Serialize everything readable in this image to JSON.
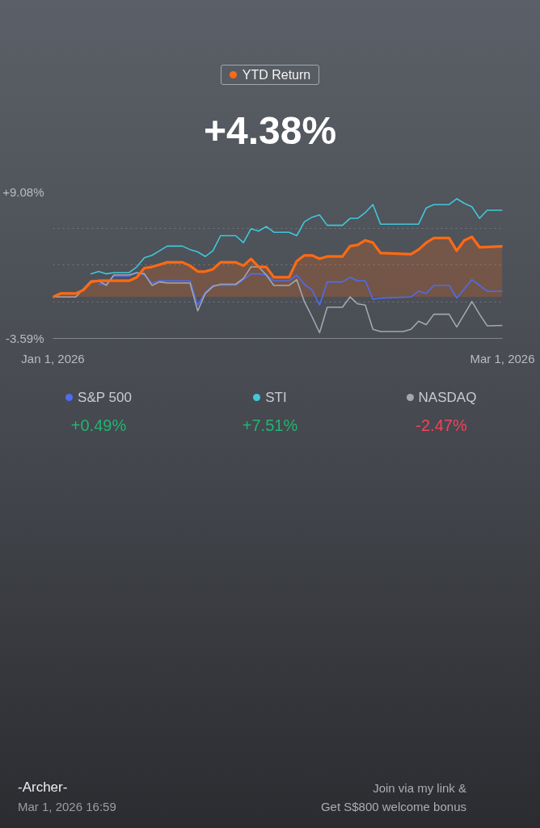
{
  "chart_data": {
    "type": "line",
    "title": "YTD Return",
    "xlim": [
      "2026-01-01",
      "2026-03-01"
    ],
    "xticks": [
      {
        "value": "2026-01-01",
        "label": "Jan 1, 2026"
      },
      {
        "value": "2026-03-01",
        "label": "Mar 1, 2026"
      }
    ],
    "ylim": [
      -3.59,
      9.08
    ],
    "yticks": [
      {
        "value": 9.08,
        "label": "+9.08%"
      },
      {
        "value": 5.91,
        "label": null
      },
      {
        "value": 2.75,
        "label": null
      },
      {
        "value": -0.42,
        "label": null
      },
      {
        "value": -3.59,
        "label": "-3.59%"
      }
    ],
    "grid": true,
    "legend": "bottom",
    "series": [
      {
        "type": "area",
        "color": "#ff6a13",
        "x": [
          "2026-01-01",
          "2026-01-02",
          "2026-01-04",
          "2026-01-05",
          "2026-01-06",
          "2026-01-07",
          "2026-01-08",
          "2026-01-11",
          "2026-01-12",
          "2026-01-13",
          "2026-01-14",
          "2026-01-15",
          "2026-01-16",
          "2026-01-18",
          "2026-01-19",
          "2026-01-20",
          "2026-01-21",
          "2026-01-22",
          "2026-01-23",
          "2026-01-25",
          "2026-01-26",
          "2026-01-27",
          "2026-01-28",
          "2026-01-29",
          "2026-01-30",
          "2026-02-01",
          "2026-02-02",
          "2026-02-03",
          "2026-02-04",
          "2026-02-05",
          "2026-02-06",
          "2026-02-08",
          "2026-02-09",
          "2026-02-10",
          "2026-02-11",
          "2026-02-12",
          "2026-02-13",
          "2026-02-17",
          "2026-02-18",
          "2026-02-19",
          "2026-02-20",
          "2026-02-22",
          "2026-02-23",
          "2026-02-24",
          "2026-02-25",
          "2026-02-26",
          "2026-03-01"
        ],
        "values": [
          0,
          0.3,
          0.3,
          0.6,
          1.3,
          1.4,
          1.4,
          1.4,
          1.7,
          2.5,
          2.6,
          2.8,
          3.0,
          3.0,
          2.7,
          2.2,
          2.2,
          2.4,
          3.0,
          3.0,
          2.7,
          3.3,
          2.6,
          2.6,
          1.7,
          1.7,
          3.1,
          3.6,
          3.6,
          3.3,
          3.5,
          3.5,
          4.4,
          4.5,
          4.9,
          4.7,
          3.8,
          3.7,
          4.1,
          4.7,
          5.1,
          5.1,
          4.0,
          4.9,
          5.2,
          4.3,
          4.38
        ]
      },
      {
        "name": "S&P 500",
        "color": "#4e6cf0",
        "x": [
          "2026-01-07",
          "2026-01-08",
          "2026-01-09",
          "2026-01-11",
          "2026-01-12",
          "2026-01-13",
          "2026-01-14",
          "2026-01-15",
          "2026-01-16",
          "2026-01-19",
          "2026-01-20",
          "2026-01-21",
          "2026-01-22",
          "2026-01-23",
          "2026-01-25",
          "2026-01-26",
          "2026-01-27",
          "2026-01-28",
          "2026-01-29",
          "2026-01-30",
          "2026-02-01",
          "2026-02-02",
          "2026-02-03",
          "2026-02-04",
          "2026-02-05",
          "2026-02-06",
          "2026-02-08",
          "2026-02-09",
          "2026-02-10",
          "2026-02-11",
          "2026-02-12",
          "2026-02-13",
          "2026-02-17",
          "2026-02-18",
          "2026-02-19",
          "2026-02-20",
          "2026-02-22",
          "2026-02-23",
          "2026-02-24",
          "2026-02-25",
          "2026-02-26",
          "2026-02-27",
          "2026-03-01"
        ],
        "values": [
          1.1,
          1.1,
          1.8,
          1.8,
          2.1,
          1.9,
          1.2,
          1.4,
          1.4,
          1.4,
          -0.7,
          0.4,
          1.0,
          1.0,
          1.0,
          1.5,
          2.0,
          2.0,
          1.9,
          1.4,
          1.4,
          1.9,
          1.1,
          0.6,
          -0.7,
          1.3,
          1.3,
          1.7,
          1.4,
          1.4,
          -0.2,
          -0.1,
          0.0,
          0.5,
          0.3,
          1.0,
          1.0,
          -0.1,
          0.7,
          1.5,
          1.0,
          0.49,
          0.49
        ]
      },
      {
        "name": "STI",
        "color": "#3fc8da",
        "x": [
          "2026-01-06",
          "2026-01-07",
          "2026-01-08",
          "2026-01-09",
          "2026-01-11",
          "2026-01-12",
          "2026-01-13",
          "2026-01-14",
          "2026-01-15",
          "2026-01-16",
          "2026-01-18",
          "2026-01-19",
          "2026-01-20",
          "2026-01-21",
          "2026-01-22",
          "2026-01-23",
          "2026-01-25",
          "2026-01-26",
          "2026-01-27",
          "2026-01-28",
          "2026-01-29",
          "2026-01-30",
          "2026-02-01",
          "2026-02-02",
          "2026-02-03",
          "2026-02-04",
          "2026-02-05",
          "2026-02-06",
          "2026-02-08",
          "2026-02-09",
          "2026-02-10",
          "2026-02-11",
          "2026-02-12",
          "2026-02-13",
          "2026-02-18",
          "2026-02-19",
          "2026-02-20",
          "2026-02-22",
          "2026-02-23",
          "2026-02-24",
          "2026-02-25",
          "2026-02-26",
          "2026-02-27",
          "2026-03-01"
        ],
        "values": [
          2.0,
          2.2,
          2.0,
          2.1,
          2.1,
          2.6,
          3.4,
          3.6,
          4.0,
          4.4,
          4.4,
          4.1,
          3.9,
          3.5,
          4.0,
          5.3,
          5.3,
          4.7,
          5.9,
          5.7,
          6.1,
          5.6,
          5.6,
          5.3,
          6.5,
          6.9,
          7.1,
          6.2,
          6.2,
          6.8,
          6.8,
          7.3,
          8.0,
          6.3,
          6.3,
          7.7,
          8.0,
          8.0,
          8.5,
          8.1,
          7.8,
          6.8,
          7.5,
          7.51
        ]
      },
      {
        "name": "NASDAQ",
        "color": "#a3a7ae",
        "x": [
          "2026-01-01",
          "2026-01-04",
          "2026-01-06",
          "2026-01-07",
          "2026-01-08",
          "2026-01-09",
          "2026-01-11",
          "2026-01-12",
          "2026-01-13",
          "2026-01-14",
          "2026-01-15",
          "2026-01-16",
          "2026-01-19",
          "2026-01-20",
          "2026-01-21",
          "2026-01-22",
          "2026-01-23",
          "2026-01-25",
          "2026-01-26",
          "2026-01-27",
          "2026-01-28",
          "2026-01-29",
          "2026-01-30",
          "2026-02-01",
          "2026-02-02",
          "2026-02-03",
          "2026-02-04",
          "2026-02-05",
          "2026-02-06",
          "2026-02-08",
          "2026-02-09",
          "2026-02-10",
          "2026-02-11",
          "2026-02-12",
          "2026-02-13",
          "2026-02-16",
          "2026-02-17",
          "2026-02-18",
          "2026-02-19",
          "2026-02-20",
          "2026-02-22",
          "2026-02-23",
          "2026-02-25",
          "2026-02-26",
          "2026-02-27",
          "2026-03-01"
        ],
        "values": [
          0,
          0,
          1.4,
          1.4,
          1.0,
          1.9,
          1.9,
          2.1,
          2.0,
          1.0,
          1.3,
          1.2,
          1.2,
          -1.2,
          0.3,
          0.9,
          1.1,
          1.1,
          1.6,
          2.6,
          2.6,
          1.9,
          1.0,
          1.0,
          1.5,
          -0.4,
          -1.7,
          -3.1,
          -0.9,
          -0.9,
          0.0,
          -0.6,
          -0.7,
          -2.8,
          -3.0,
          -3.0,
          -2.8,
          -2.1,
          -2.4,
          -1.5,
          -1.5,
          -2.6,
          -0.4,
          -1.5,
          -2.5,
          -2.47
        ]
      }
    ],
    "annotations": [
      "+4.38%",
      "+0.49%",
      "+7.51%",
      "-2.47%",
      "-Archer-",
      "Mar 1, 2026 16:59",
      "Join via my link &",
      "Get S$800 welcome bonus"
    ]
  }
}
